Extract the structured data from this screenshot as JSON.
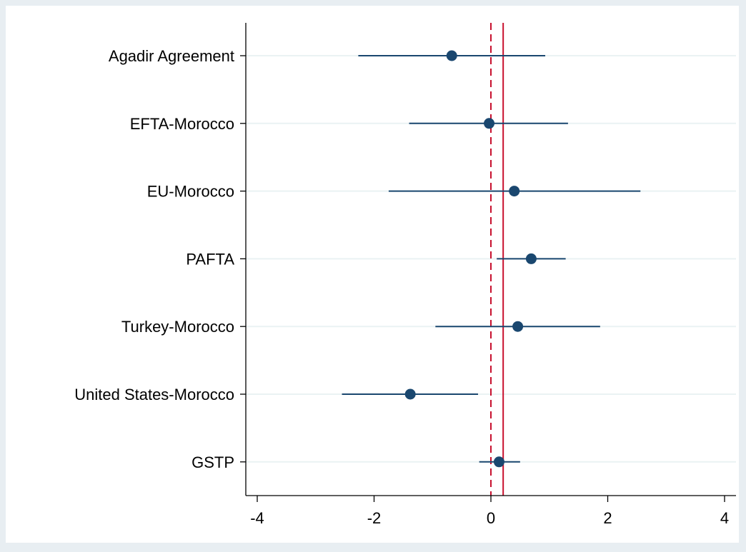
{
  "chart_data": {
    "type": "scatter",
    "subtype": "coefficient-plot",
    "title": "",
    "xlabel": "",
    "ylabel": "",
    "xlim": [
      -4.2,
      4.2
    ],
    "xticks": [
      -4,
      -2,
      0,
      2,
      4
    ],
    "xtick_labels": [
      "-4",
      "-2",
      "0",
      "2",
      "4"
    ],
    "categories": [
      "Agadir Agreement",
      "EFTA-Morocco",
      "EU-Morocco",
      "PAFTA",
      "Turkey-Morocco",
      "United States-Morocco",
      "GSTP"
    ],
    "estimates": [
      -0.67,
      -0.03,
      0.4,
      0.69,
      0.46,
      -1.38,
      0.14
    ],
    "ci_lower": [
      -2.27,
      -1.4,
      -1.75,
      0.1,
      -0.95,
      -2.55,
      -0.2
    ],
    "ci_upper": [
      0.93,
      1.32,
      2.56,
      1.28,
      1.87,
      -0.22,
      0.5
    ],
    "reference_lines": [
      {
        "x": 0,
        "style": "dashed",
        "color": "#c8102e"
      },
      {
        "x": 0.21,
        "style": "solid",
        "color": "#c8102e"
      }
    ],
    "grid": "horizontal",
    "legend": "none",
    "colors": {
      "marker": "#1a476f",
      "grid": "#eaf2f3",
      "plot_background": "#ffffff",
      "outer_background": "#e8eef2"
    }
  }
}
